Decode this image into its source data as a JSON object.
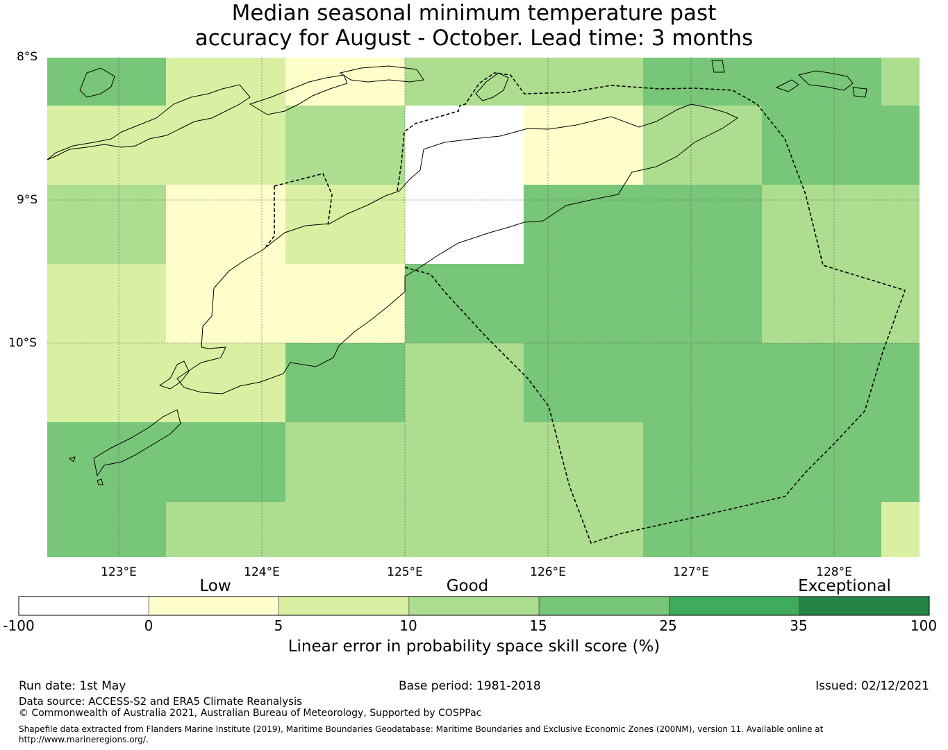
{
  "title": {
    "line1": "Median seasonal minimum temperature past",
    "line2": "accuracy for August - October. Lead time: 3 months"
  },
  "map": {
    "lat_labels": [
      "8°S",
      "9°S",
      "10°S"
    ],
    "lon_labels": [
      "123°E",
      "124°E",
      "125°E",
      "126°E",
      "127°E",
      "128°E"
    ],
    "grid_rows": [
      [
        "15-25",
        "5-10",
        "0-5",
        "10-15",
        "10-15",
        "15-25",
        "15-25",
        "10-15"
      ],
      [
        "5-10",
        "5-10",
        "10-15",
        "-100-0",
        "0-5",
        "10-15",
        "15-25",
        "15-25"
      ],
      [
        "10-15",
        "0-5",
        "5-10",
        "-100-0",
        "15-25",
        "15-25",
        "10-15",
        "10-15"
      ],
      [
        "5-10",
        "0-5",
        "0-5",
        "15-25",
        "15-25",
        "15-25",
        "10-15",
        "10-15"
      ],
      [
        "5-10",
        "5-10",
        "15-25",
        "10-15",
        "15-25",
        "15-25",
        "15-25",
        "15-25"
      ],
      [
        "15-25",
        "15-25",
        "10-15",
        "10-15",
        "10-15",
        "15-25",
        "15-25",
        "15-25"
      ],
      [
        "15-25",
        "10-15",
        "10-15",
        "10-15",
        "10-15",
        "15-25",
        "15-25",
        "5-10"
      ]
    ]
  },
  "colorbar": {
    "categories": [
      "Low",
      "Good",
      "Exceptional"
    ],
    "ticks": [
      "-100",
      "0",
      "5",
      "10",
      "15",
      "25",
      "35",
      "100"
    ],
    "bins": [
      {
        "range": "-100-0",
        "color": "#ffffff"
      },
      {
        "range": "0-5",
        "color": "#ffffcc"
      },
      {
        "range": "5-10",
        "color": "#d9f0a3"
      },
      {
        "range": "10-15",
        "color": "#addd8e"
      },
      {
        "range": "15-25",
        "color": "#78c679"
      },
      {
        "range": "25-35",
        "color": "#41ab5d"
      },
      {
        "range": "35-100",
        "color": "#238443"
      }
    ],
    "label": "Linear error in probability space skill score (%)"
  },
  "footer": {
    "run_date": "Run date: 1st May",
    "base_period": "Base period: 1981-2018",
    "issued": "Issued: 02/12/2021",
    "data_source": "Data source: ACCESS-S2 and ERA5 Climate Reanalysis",
    "copyright": "© Commonwealth of Australia 2021, Australian Bureau of Meteorology, Supported by COSPPac",
    "shapefile_1": "Shapefile data extracted from Flanders Marine Institute (2019), Maritime Boundaries Geodatabase: Maritime Boundaries and Exclusive Economic Zones (200NM), version 11. Available online at",
    "shapefile_2": "http://www.marineregions.org/."
  }
}
